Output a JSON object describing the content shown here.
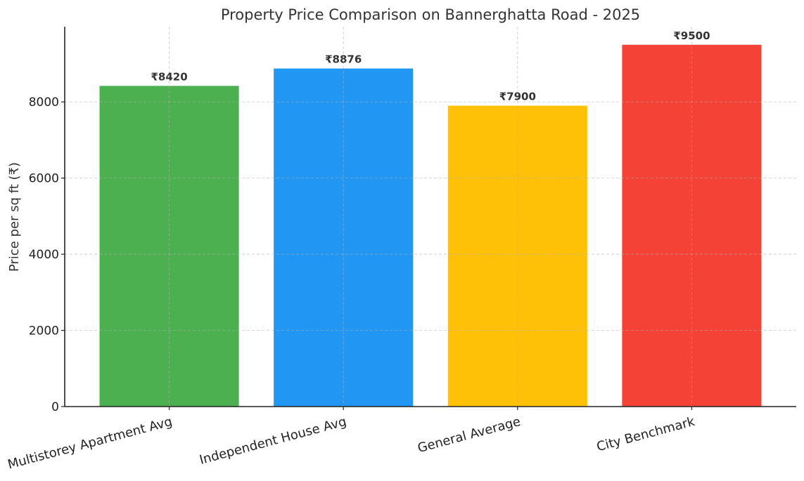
{
  "chart_data": {
    "type": "bar",
    "title": "Property Price Comparison on Bannerghatta Road - 2025",
    "xlabel": "",
    "ylabel": "Price per sq ft (₹)",
    "categories": [
      "Multistorey Apartment Avg",
      "Independent House Avg",
      "General Average",
      "City Benchmark"
    ],
    "values": [
      8420,
      8876,
      7900,
      9500
    ],
    "value_labels": [
      "₹8420",
      "₹8876",
      "₹7900",
      "₹9500"
    ],
    "colors": [
      "#4caf50",
      "#2196f3",
      "#ffc107",
      "#f44336"
    ],
    "ylim": [
      0,
      9975
    ],
    "yticks": [
      0,
      2000,
      4000,
      6000,
      8000
    ],
    "ytick_labels": [
      "0",
      "2000",
      "4000",
      "6000",
      "8000"
    ],
    "grid": true,
    "xtick_rotation_deg": 15
  }
}
